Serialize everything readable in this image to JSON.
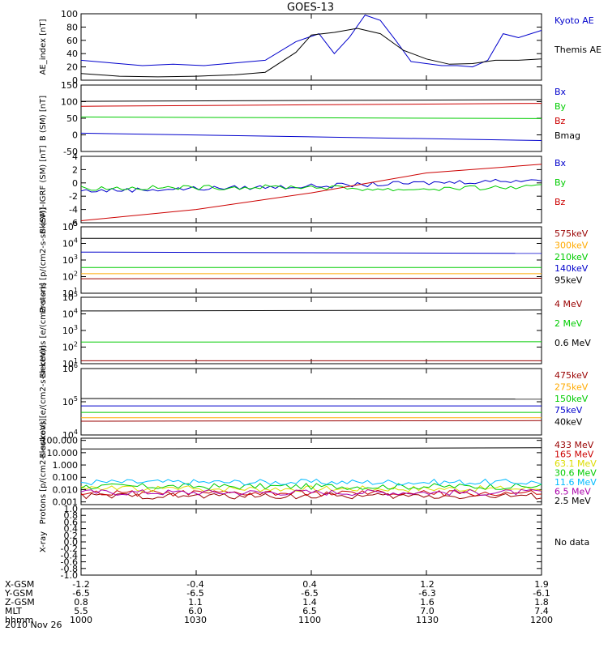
{
  "title": "GOES-13",
  "date_label": "2010 Nov 26",
  "colors": {
    "black": "#000000",
    "blue": "#0000cc",
    "green": "#00cc00",
    "red": "#cc0000",
    "darkred": "#990000",
    "orange": "#ffaa00",
    "cyan": "#00bbff",
    "yellow": "#dddd00",
    "magenta": "#aa00aa"
  },
  "ephemeris": {
    "rows": [
      {
        "label": "X-GSM",
        "values": [
          "-1.2",
          "-0.4",
          "0.4",
          "1.2",
          "1.9"
        ]
      },
      {
        "label": "Y-GSM",
        "values": [
          "-6.5",
          "-6.5",
          "-6.5",
          "-6.3",
          "-6.1"
        ]
      },
      {
        "label": "Z-GSM",
        "values": [
          "0.8",
          "1.1",
          "1.4",
          "1.6",
          "1.8"
        ]
      },
      {
        "label": "MLT",
        "values": [
          "5.5",
          "6.0",
          "6.5",
          "7.0",
          "7.4"
        ]
      },
      {
        "label": "hhmm",
        "values": [
          "1000",
          "1030",
          "1100",
          "1130",
          "1200"
        ]
      }
    ]
  },
  "chart_data": [
    {
      "type": "line",
      "ylabel": "AE_index [nT]",
      "ylim": [
        0,
        100
      ],
      "yscale": "linear",
      "yticks": [
        "0",
        "20",
        "40",
        "60",
        "80",
        "100"
      ],
      "xlim": [
        "10:00",
        "12:00"
      ],
      "series": [
        {
          "name": "Kyoto AE",
          "color": "#0000cc",
          "x": [
            "10:00",
            "10:08",
            "10:16",
            "10:24",
            "10:32",
            "10:40",
            "10:48",
            "10:56",
            "11:02",
            "11:06",
            "11:10",
            "11:14",
            "11:18",
            "11:22",
            "11:26",
            "11:30",
            "11:34",
            "11:38",
            "11:42",
            "11:46",
            "11:50",
            "11:54",
            "12:00"
          ],
          "values": [
            30,
            26,
            22,
            24,
            22,
            26,
            30,
            58,
            70,
            40,
            65,
            98,
            90,
            60,
            28,
            25,
            22,
            22,
            20,
            30,
            70,
            64,
            75
          ]
        },
        {
          "name": "Themis AE",
          "color": "#000000",
          "x": [
            "10:00",
            "10:10",
            "10:20",
            "10:30",
            "10:40",
            "10:48",
            "10:56",
            "11:00",
            "11:06",
            "11:12",
            "11:18",
            "11:24",
            "11:30",
            "11:36",
            "11:42",
            "11:48",
            "11:54",
            "12:00"
          ],
          "values": [
            10,
            6,
            5,
            6,
            8,
            12,
            42,
            68,
            72,
            78,
            70,
            45,
            32,
            24,
            25,
            30,
            30,
            32
          ]
        }
      ]
    },
    {
      "type": "line",
      "ylabel": "B (SM) [nT]",
      "ylim": [
        -50,
        150
      ],
      "yscale": "linear",
      "yticks": [
        "-50",
        "0",
        "50",
        "100",
        "150"
      ],
      "series": [
        {
          "name": "Bx",
          "color": "#0000cc",
          "x": [
            "10:00",
            "12:00"
          ],
          "values": [
            5,
            -17
          ]
        },
        {
          "name": "By",
          "color": "#00cc00",
          "x": [
            "10:00",
            "12:00"
          ],
          "values": [
            54,
            49
          ]
        },
        {
          "name": "Bz",
          "color": "#cc0000",
          "x": [
            "10:00",
            "12:00"
          ],
          "values": [
            86,
            95
          ]
        },
        {
          "name": "Bmag",
          "color": "#000000",
          "x": [
            "10:00",
            "12:00"
          ],
          "values": [
            101,
            106
          ]
        }
      ]
    },
    {
      "type": "line",
      "ylabel": "B (SM)-IGRF (SM) [nT]",
      "ylim": [
        -6,
        4
      ],
      "yscale": "linear",
      "yticks": [
        "-6",
        "-4",
        "-2",
        "0",
        "2",
        "4"
      ],
      "series": [
        {
          "name": "Bx",
          "color": "#0000cc",
          "x": [
            "10:00",
            "11:00",
            "12:00"
          ],
          "values": [
            -1.2,
            -0.5,
            0.5
          ]
        },
        {
          "name": "By",
          "color": "#00cc00",
          "x": [
            "10:00",
            "11:00",
            "11:20",
            "12:00"
          ],
          "values": [
            -0.8,
            -0.6,
            -1.0,
            -0.6
          ]
        },
        {
          "name": "Bz",
          "color": "#cc0000",
          "x": [
            "10:00",
            "10:30",
            "11:00",
            "11:30",
            "12:00"
          ],
          "values": [
            -5.7,
            -4.0,
            -1.5,
            1.5,
            2.8
          ]
        }
      ]
    },
    {
      "type": "line",
      "ylabel": "Protons [p/(cm2-s-sr-keV)]",
      "ylim": [
        10,
        100000
      ],
      "yscale": "log",
      "yticks": [
        "10^1",
        "10^2",
        "10^3",
        "10^4",
        "10^5"
      ],
      "series": [
        {
          "name": "575keV",
          "color": "#990000",
          "x": [
            "10:00",
            "12:00"
          ],
          "values": [
            75,
            80
          ]
        },
        {
          "name": "300keV",
          "color": "#ffaa00",
          "x": [
            "10:00",
            "12:00"
          ],
          "values": [
            150,
            150
          ]
        },
        {
          "name": "210keV",
          "color": "#00cc00",
          "x": [
            "10:00",
            "12:00"
          ],
          "values": [
            350,
            350
          ]
        },
        {
          "name": "140keV",
          "color": "#0000cc",
          "x": [
            "10:00",
            "12:00"
          ],
          "values": [
            3000,
            2500
          ]
        },
        {
          "name": "95keV",
          "color": "#000000",
          "x": [
            "10:00",
            "12:00"
          ],
          "values": [
            20000,
            20000
          ]
        }
      ]
    },
    {
      "type": "line",
      "ylabel": "Electrons [e/(cm2-s-sr)]",
      "ylim": [
        10,
        100000
      ],
      "yscale": "log",
      "yticks": [
        "10^1",
        "10^2",
        "10^3",
        "10^4",
        "10^5"
      ],
      "series": [
        {
          "name": "4 MeV",
          "color": "#990000",
          "x": [
            "10:00",
            "12:00"
          ],
          "values": [
            15,
            15
          ]
        },
        {
          "name": "2 MeV",
          "color": "#00cc00",
          "x": [
            "10:00",
            "12:00"
          ],
          "values": [
            200,
            210
          ]
        },
        {
          "name": "0.6 MeV",
          "color": "#000000",
          "x": [
            "10:00",
            "12:00"
          ],
          "values": [
            15000,
            17000
          ]
        }
      ]
    },
    {
      "type": "line",
      "ylabel": "Electrons [e/(cm2-s-sr-keV)]",
      "ylim": [
        10000,
        1000000
      ],
      "yscale": "log",
      "yticks": [
        "10^4",
        "10^5",
        "10^6"
      ],
      "series": [
        {
          "name": "475keV",
          "color": "#990000",
          "x": [
            "10:00",
            "12:00"
          ],
          "values": [
            26000,
            27000
          ]
        },
        {
          "name": "275keV",
          "color": "#ffaa00",
          "x": [
            "10:00",
            "12:00"
          ],
          "values": [
            33000,
            33000
          ]
        },
        {
          "name": "150keV",
          "color": "#00cc00",
          "x": [
            "10:00",
            "12:00"
          ],
          "values": [
            48000,
            48000
          ]
        },
        {
          "name": "75keV",
          "color": "#0000cc",
          "x": [
            "10:00",
            "12:00"
          ],
          "values": [
            75000,
            75000
          ]
        },
        {
          "name": "40keV",
          "color": "#000000",
          "x": [
            "10:00",
            "12:00"
          ],
          "values": [
            125000,
            120000
          ]
        }
      ]
    },
    {
      "type": "line",
      "ylabel": "Protons [p/(cm2-s-sr-keV)]",
      "ylim": [
        0.0006,
        150
      ],
      "yscale": "log",
      "yticks": [
        "0.001",
        "0.010",
        "0.100",
        "1.000",
        "10.000",
        "100.000"
      ],
      "series": [
        {
          "name": "433 MeV",
          "color": "#990000",
          "x": [
            "10:00",
            "12:00"
          ],
          "values": [
            0.003,
            0.003
          ]
        },
        {
          "name": "165 MeV",
          "color": "#cc0000",
          "x": [
            "10:00",
            "12:00"
          ],
          "values": [
            0.005,
            0.005
          ]
        },
        {
          "name": "63.1 MeV",
          "color": "#dddd00",
          "x": [
            "10:00",
            "12:00"
          ],
          "values": [
            0.012,
            0.012
          ]
        },
        {
          "name": "30.6 MeV",
          "color": "#00cc00",
          "x": [
            "10:00",
            "12:00"
          ],
          "values": [
            0.018,
            0.018
          ]
        },
        {
          "name": "11.6 MeV",
          "color": "#00bbff",
          "x": [
            "10:00",
            "12:00"
          ],
          "values": [
            0.04,
            0.04
          ]
        },
        {
          "name": "6.5 MeV",
          "color": "#aa00aa",
          "x": [
            "10:00",
            "12:00"
          ],
          "values": [
            0.006,
            0.006
          ]
        },
        {
          "name": "2.5 MeV",
          "color": "#000000",
          "x": [
            "10:00",
            "12:00"
          ],
          "values": [
            20,
            25
          ]
        }
      ]
    },
    {
      "type": "line",
      "ylabel": "X-ray",
      "ylim": [
        -1.0,
        1.0
      ],
      "yscale": "linear",
      "yticks": [
        "-1.0",
        "-0.8",
        "-0.6",
        "-0.4",
        "-0.2",
        "0.0",
        "0.2",
        "0.4",
        "0.6",
        "0.8",
        "1.0"
      ],
      "note": "No data",
      "series": []
    }
  ]
}
